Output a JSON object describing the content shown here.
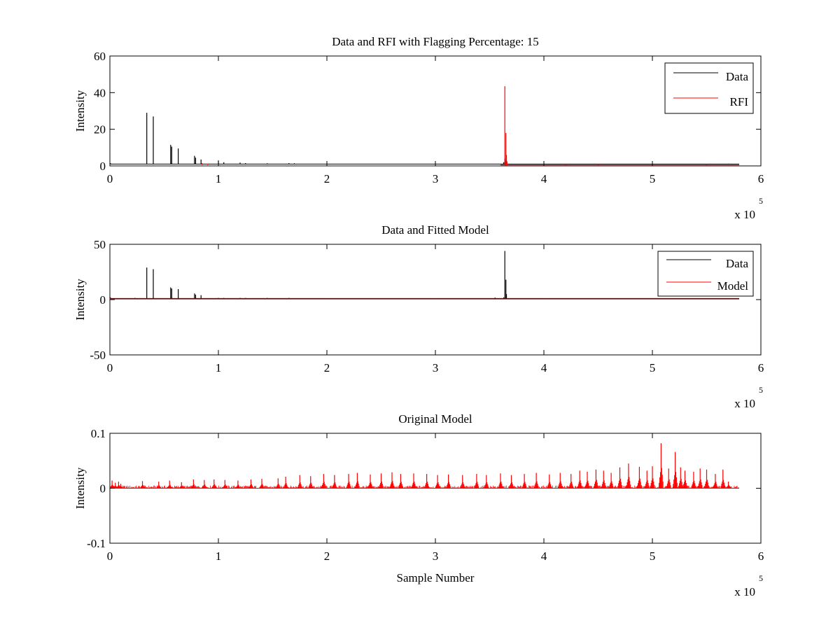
{
  "chart_data": [
    {
      "type": "line",
      "title": "Data and RFI with Flagging Percentage: 15",
      "xlabel": "",
      "ylabel": "Intensity",
      "xlim": [
        0,
        6
      ],
      "ylim": [
        0,
        60
      ],
      "xticks": [
        0,
        1,
        2,
        3,
        4,
        5,
        6
      ],
      "yticks": [
        0,
        20,
        40,
        60
      ],
      "xtick_labels": [
        "0",
        "1",
        "2",
        "3",
        "4",
        "5",
        "6"
      ],
      "ytick_labels": [
        "0",
        "20",
        "40",
        "60"
      ],
      "x_multiplier": {
        "base": "x 10",
        "exponent": "5"
      },
      "grid": false,
      "legend_position": "top-right",
      "series": [
        {
          "name": "Data",
          "color": "#000000",
          "baseline": 1,
          "x_end": 5.8,
          "spikes": [
            [
              0.005,
              1.5
            ],
            [
              0.34,
              29
            ],
            [
              0.4,
              27
            ],
            [
              0.56,
              11.5
            ],
            [
              0.57,
              10.5
            ],
            [
              0.63,
              9.5
            ],
            [
              0.78,
              5.5
            ],
            [
              0.79,
              4.5
            ],
            [
              0.84,
              3.5
            ],
            [
              1.0,
              3
            ],
            [
              1.05,
              2.0
            ],
            [
              1.2,
              1.8
            ],
            [
              1.25,
              1.5
            ],
            [
              1.45,
              1.4
            ],
            [
              1.65,
              1.5
            ],
            [
              1.7,
              1.4
            ],
            [
              3.63,
              2
            ],
            [
              3.64,
              4
            ],
            [
              3.65,
              3
            ],
            [
              5.7,
              1.2
            ]
          ]
        },
        {
          "name": "RFI",
          "color": "#ff0000",
          "baseline": 0.5,
          "x_start": 3.6,
          "x_end": 5.8,
          "spikes": [
            [
              0.85,
              1.5
            ],
            [
              0.9,
              1.2
            ],
            [
              3.64,
              43.5
            ],
            [
              3.65,
              18
            ],
            [
              3.655,
              6
            ],
            [
              3.66,
              2.5
            ],
            [
              4.2,
              1.0
            ],
            [
              4.5,
              1.0
            ],
            [
              5.0,
              1.0
            ],
            [
              5.5,
              1.0
            ]
          ]
        }
      ]
    },
    {
      "type": "line",
      "title": "Data and Fitted Model",
      "xlabel": "",
      "ylabel": "Intensity",
      "xlim": [
        0,
        6
      ],
      "ylim": [
        -50,
        50
      ],
      "xticks": [
        0,
        1,
        2,
        3,
        4,
        5,
        6
      ],
      "yticks": [
        -50,
        0,
        50
      ],
      "xtick_labels": [
        "0",
        "1",
        "2",
        "3",
        "4",
        "5",
        "6"
      ],
      "ytick_labels": [
        "-50",
        "0",
        "50"
      ],
      "x_multiplier": {
        "base": "x 10",
        "exponent": "5"
      },
      "grid": false,
      "legend_position": "top-right",
      "series": [
        {
          "name": "Data",
          "color": "#000000",
          "baseline": 1,
          "x_end": 5.8,
          "spikes": [
            [
              0.005,
              2
            ],
            [
              0.23,
              1.5
            ],
            [
              0.34,
              29
            ],
            [
              0.4,
              27.5
            ],
            [
              0.56,
              11
            ],
            [
              0.57,
              10
            ],
            [
              0.63,
              9.5
            ],
            [
              0.78,
              5.5
            ],
            [
              0.79,
              4.5
            ],
            [
              0.84,
              4
            ],
            [
              1.0,
              1.5
            ],
            [
              1.05,
              1.5
            ],
            [
              1.2,
              1.5
            ],
            [
              1.25,
              1.5
            ],
            [
              1.45,
              1.5
            ],
            [
              1.65,
              1.5
            ],
            [
              3.55,
              1.8
            ],
            [
              3.63,
              2
            ],
            [
              3.64,
              44
            ],
            [
              3.65,
              18
            ],
            [
              3.655,
              5
            ]
          ]
        },
        {
          "name": "Model",
          "color": "#ff0000",
          "baseline": 0.5,
          "x_end": 5.8,
          "spikes": [
            [
              0.005,
              1.5
            ],
            [
              0.05,
              1.0
            ],
            [
              1.3,
              0.8
            ],
            [
              2.0,
              0.8
            ],
            [
              3.0,
              0.8
            ],
            [
              4.0,
              0.8
            ],
            [
              5.0,
              0.8
            ]
          ]
        }
      ]
    },
    {
      "type": "line",
      "title": "Original Model",
      "xlabel": "Sample Number",
      "ylabel": "Intensity",
      "xlim": [
        0,
        6
      ],
      "ylim": [
        -0.1,
        0.1
      ],
      "xticks": [
        0,
        1,
        2,
        3,
        4,
        5,
        6
      ],
      "yticks": [
        -0.1,
        0,
        0.1
      ],
      "xtick_labels": [
        "0",
        "1",
        "2",
        "3",
        "4",
        "5",
        "6"
      ],
      "ytick_labels": [
        "-0.1",
        "0",
        "0.1"
      ],
      "x_multiplier": {
        "base": "x 10",
        "exponent": "5"
      },
      "grid": false,
      "series": [
        {
          "color": "#ff0000",
          "baseline": 0,
          "x_end": 5.8,
          "spikes": [
            [
              0.02,
              0.014
            ],
            [
              0.05,
              0.01
            ],
            [
              0.08,
              0.012
            ],
            [
              0.1,
              0.008
            ],
            [
              0.3,
              0.013
            ],
            [
              0.45,
              0.012
            ],
            [
              0.55,
              0.014
            ],
            [
              0.66,
              0.011
            ],
            [
              0.77,
              0.016
            ],
            [
              0.87,
              0.015
            ],
            [
              0.96,
              0.016
            ],
            [
              1.06,
              0.015
            ],
            [
              1.18,
              0.014
            ],
            [
              1.3,
              0.016
            ],
            [
              1.4,
              0.017
            ],
            [
              1.55,
              0.018
            ],
            [
              1.62,
              0.021
            ],
            [
              1.75,
              0.024
            ],
            [
              1.85,
              0.022
            ],
            [
              1.97,
              0.026
            ],
            [
              2.07,
              0.024
            ],
            [
              2.2,
              0.026
            ],
            [
              2.28,
              0.028
            ],
            [
              2.4,
              0.025
            ],
            [
              2.5,
              0.027
            ],
            [
              2.6,
              0.029
            ],
            [
              2.68,
              0.026
            ],
            [
              2.8,
              0.027
            ],
            [
              2.92,
              0.026
            ],
            [
              3.02,
              0.024
            ],
            [
              3.12,
              0.025
            ],
            [
              3.25,
              0.024
            ],
            [
              3.38,
              0.026
            ],
            [
              3.47,
              0.024
            ],
            [
              3.6,
              0.027
            ],
            [
              3.7,
              0.024
            ],
            [
              3.82,
              0.026
            ],
            [
              3.93,
              0.028
            ],
            [
              4.05,
              0.025
            ],
            [
              4.15,
              0.028
            ],
            [
              4.25,
              0.026
            ],
            [
              4.33,
              0.032
            ],
            [
              4.4,
              0.03
            ],
            [
              4.48,
              0.034
            ],
            [
              4.55,
              0.032
            ],
            [
              4.62,
              0.028
            ],
            [
              4.7,
              0.038
            ],
            [
              4.78,
              0.045
            ],
            [
              4.88,
              0.039
            ],
            [
              4.95,
              0.032
            ],
            [
              5.0,
              0.04
            ],
            [
              5.08,
              0.082
            ],
            [
              5.15,
              0.036
            ],
            [
              5.21,
              0.066
            ],
            [
              5.26,
              0.038
            ],
            [
              5.3,
              0.032
            ],
            [
              5.38,
              0.03
            ],
            [
              5.44,
              0.036
            ],
            [
              5.5,
              0.034
            ],
            [
              5.58,
              0.026
            ],
            [
              5.65,
              0.034
            ],
            [
              5.7,
              0.012
            ]
          ]
        }
      ]
    }
  ]
}
